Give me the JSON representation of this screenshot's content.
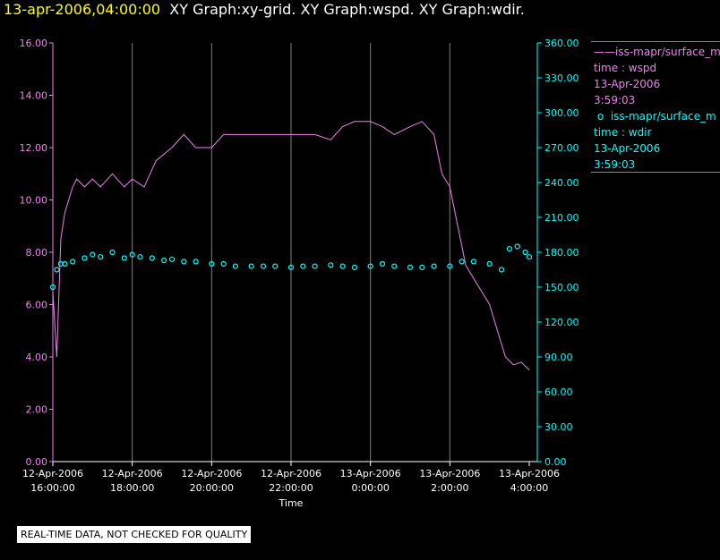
{
  "header": {
    "timestamp": "13-apr-2006,04:00:00",
    "titles": "XY Graph:xy-grid.  XY Graph:wspd.  XY Graph:wdir."
  },
  "legend": [
    {
      "marker": "——",
      "source": "iss-mapr/surface_m",
      "var": "time : wspd",
      "date": "13-Apr-2006",
      "time": "3:59:03",
      "color": "#ee82ee"
    },
    {
      "marker": "o",
      "source": "iss-mapr/surface_m",
      "var": "time : wdir",
      "date": "13-Apr-2006",
      "time": "3:59:03",
      "color": "#00ffff"
    }
  ],
  "disclaimer": "REAL-TIME DATA, NOT CHECKED FOR QUALITY",
  "chart_data": {
    "type": "line",
    "xlabel": "Time",
    "x_ticks": [
      {
        "hours": 0,
        "line1": "12-Apr-2006",
        "line2": "16:00:00"
      },
      {
        "hours": 2,
        "line1": "12-Apr-2006",
        "line2": "18:00:00"
      },
      {
        "hours": 4,
        "line1": "12-Apr-2006",
        "line2": "20:00:00"
      },
      {
        "hours": 6,
        "line1": "12-Apr-2006",
        "line2": "22:00:00"
      },
      {
        "hours": 8,
        "line1": "13-Apr-2006",
        "line2": "0:00:00"
      },
      {
        "hours": 10,
        "line1": "13-Apr-2006",
        "line2": "2:00:00"
      },
      {
        "hours": 12,
        "line1": "13-Apr-2006",
        "line2": "4:00:00"
      }
    ],
    "xlim": [
      0,
      12
    ],
    "y_left": {
      "ylim": [
        0,
        16
      ],
      "ticks": [
        "0.00",
        "2.00",
        "4.00",
        "6.00",
        "8.00",
        "10.00",
        "12.00",
        "14.00",
        "16.00"
      ],
      "color": "#ee82ee"
    },
    "y_right": {
      "ylim": [
        0,
        360
      ],
      "ticks": [
        "0.00",
        "30.00",
        "60.00",
        "90.00",
        "120.00",
        "150.00",
        "180.00",
        "210.00",
        "240.00",
        "270.00",
        "300.00",
        "330.00",
        "360.00"
      ],
      "color": "#00ffff"
    },
    "grid": "vertical",
    "series": [
      {
        "name": "iss-mapr/surface_m time : wspd",
        "type": "line",
        "axis": "left",
        "color": "#ee82ee",
        "x": [
          0,
          0.1,
          0.2,
          0.3,
          0.4,
          0.5,
          0.6,
          0.8,
          1.0,
          1.2,
          1.5,
          1.8,
          2.0,
          2.3,
          2.6,
          3.0,
          3.3,
          3.6,
          4.0,
          4.3,
          4.6,
          5.0,
          5.3,
          5.6,
          6.0,
          6.3,
          6.6,
          7.0,
          7.3,
          7.6,
          8.0,
          8.3,
          8.6,
          9.0,
          9.3,
          9.6,
          9.8,
          10.0,
          10.2,
          10.4,
          10.6,
          10.8,
          11.0,
          11.2,
          11.4,
          11.6,
          11.8,
          12.0
        ],
        "values": [
          6.5,
          4.0,
          8.5,
          9.5,
          10.0,
          10.5,
          10.8,
          10.5,
          10.8,
          10.5,
          11.0,
          10.5,
          10.8,
          10.5,
          11.5,
          12.0,
          12.5,
          12.0,
          12.0,
          12.5,
          12.5,
          12.5,
          12.5,
          12.5,
          12.5,
          12.5,
          12.5,
          12.3,
          12.8,
          13.0,
          13.0,
          12.8,
          12.5,
          12.8,
          13.0,
          12.5,
          11.0,
          10.5,
          9.0,
          7.5,
          7.0,
          6.5,
          6.0,
          5.0,
          4.0,
          3.7,
          3.8,
          3.5
        ]
      },
      {
        "name": "iss-mapr/surface_m time : wdir",
        "type": "scatter",
        "axis": "right",
        "color": "#00ffff",
        "x": [
          0,
          0.1,
          0.2,
          0.3,
          0.5,
          0.8,
          1.0,
          1.2,
          1.5,
          1.8,
          2.0,
          2.2,
          2.5,
          2.8,
          3.0,
          3.3,
          3.6,
          4.0,
          4.3,
          4.6,
          5.0,
          5.3,
          5.6,
          6.0,
          6.3,
          6.6,
          7.0,
          7.3,
          7.6,
          8.0,
          8.3,
          8.6,
          9.0,
          9.3,
          9.6,
          10.0,
          10.3,
          10.6,
          11.0,
          11.3,
          11.5,
          11.7,
          11.9,
          12.0
        ],
        "values": [
          150,
          165,
          170,
          170,
          172,
          175,
          178,
          176,
          180,
          175,
          178,
          176,
          175,
          173,
          174,
          172,
          172,
          170,
          170,
          168,
          168,
          168,
          168,
          167,
          168,
          168,
          169,
          168,
          167,
          168,
          170,
          168,
          167,
          167,
          168,
          168,
          172,
          172,
          170,
          165,
          183,
          185,
          180,
          176
        ]
      }
    ]
  }
}
